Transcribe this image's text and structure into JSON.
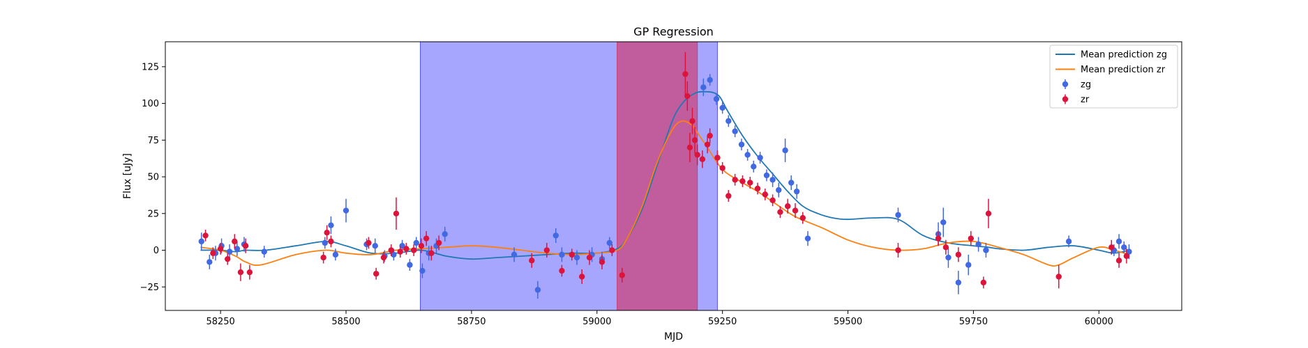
{
  "chart_data": {
    "type": "scatter",
    "title": "GP Regression",
    "xlabel": "MJD",
    "ylabel": "Flux [uJy]",
    "xlim": [
      58140,
      60165
    ],
    "ylim": [
      -41,
      142
    ],
    "xticks": [
      58250,
      58500,
      58750,
      59000,
      59250,
      59500,
      59750,
      60000
    ],
    "yticks": [
      -25,
      0,
      25,
      50,
      75,
      100,
      125
    ],
    "grid": false,
    "legend_position": "top-right",
    "shaded_regions": [
      {
        "x0": 58648,
        "x1": 59240,
        "color": "#0000ff",
        "opacity": 0.35
      },
      {
        "x0": 59040,
        "x1": 59200,
        "color": "#dc143c",
        "opacity": 0.5
      }
    ],
    "series": [
      {
        "name": "Mean prediction zg",
        "kind": "line",
        "color": "#1f77b4",
        "x": [
          58210,
          58250,
          58280,
          58300,
          58340,
          58400,
          58460,
          58500,
          58550,
          58600,
          58650,
          58700,
          58750,
          58800,
          58850,
          58900,
          58950,
          59000,
          59040,
          59060,
          59090,
          59120,
          59150,
          59170,
          59190,
          59210,
          59240,
          59260,
          59290,
          59320,
          59350,
          59380,
          59410,
          59440,
          59470,
          59500,
          59550,
          59600,
          59650,
          59700,
          59750,
          59780,
          59800,
          59850,
          59900,
          59950,
          60000,
          60030,
          60060
        ],
        "y": [
          0,
          0,
          -1,
          0,
          0,
          3,
          6,
          3,
          -2,
          -2,
          0,
          -4,
          -6,
          -5,
          -4,
          -3,
          -2,
          -2,
          1,
          8,
          28,
          58,
          88,
          100,
          106,
          108,
          106,
          95,
          78,
          64,
          52,
          40,
          30,
          25,
          22,
          21,
          22,
          21,
          10,
          5,
          3,
          2,
          1,
          0,
          2,
          3,
          0,
          -2,
          0
        ]
      },
      {
        "name": "Mean prediction zr",
        "kind": "line",
        "color": "#ff7f0e",
        "x": [
          58210,
          58250,
          58280,
          58300,
          58330,
          58400,
          58460,
          58500,
          58550,
          58600,
          58650,
          58700,
          58750,
          58800,
          58850,
          58900,
          58950,
          59000,
          59040,
          59060,
          59090,
          59120,
          59150,
          59170,
          59190,
          59200,
          59220,
          59250,
          59290,
          59320,
          59350,
          59380,
          59400,
          59450,
          59500,
          59550,
          59600,
          59650,
          59700,
          59750,
          59800,
          59850,
          59900,
          59920,
          59950,
          60000,
          60030,
          60060
        ],
        "y": [
          2,
          0,
          -4,
          -8,
          -10,
          -3,
          0,
          -2,
          -3,
          0,
          1,
          2,
          3,
          2,
          0,
          -2,
          -3,
          -2,
          0,
          8,
          30,
          60,
          82,
          88,
          85,
          80,
          70,
          55,
          46,
          40,
          33,
          26,
          22,
          15,
          7,
          2,
          0,
          1,
          5,
          6,
          2,
          -3,
          -10,
          -10,
          -5,
          2,
          0,
          -3
        ]
      },
      {
        "name": "zg",
        "kind": "errorbar",
        "color": "#4169e1",
        "x": [
          58212,
          58228,
          58240,
          58252,
          58268,
          58283,
          58297,
          58337,
          58458,
          58470,
          58479,
          58500,
          58541,
          58558,
          58577,
          58595,
          58612,
          58627,
          58640,
          58652,
          58665,
          58680,
          58697,
          58835,
          58882,
          58918,
          58930,
          58960,
          58990,
          59010,
          59025,
          59212,
          59225,
          59238,
          59250,
          59262,
          59275,
          59288,
          59300,
          59312,
          59325,
          59338,
          59350,
          59362,
          59375,
          59387,
          59398,
          59420,
          59600,
          59680,
          59690,
          59700,
          59720,
          59740,
          59760,
          59775,
          59940,
          60030,
          60040,
          60050,
          60060
        ],
        "y": [
          6,
          -8,
          -2,
          3,
          -1,
          1,
          4,
          -1,
          5,
          17,
          -3,
          27,
          4,
          3,
          -4,
          -3,
          3,
          -10,
          5,
          -14,
          -2,
          3,
          11,
          -3,
          -27,
          10,
          -3,
          -5,
          -3,
          -6,
          5,
          111,
          116,
          103,
          97,
          88,
          81,
          72,
          65,
          57,
          63,
          51,
          48,
          41,
          68,
          46,
          40,
          8,
          24,
          11,
          19,
          -5,
          -22,
          -10,
          4,
          0,
          6,
          0,
          6,
          2,
          -1
        ],
        "err": [
          6,
          5,
          5,
          5,
          5,
          5,
          5,
          4,
          4,
          6,
          4,
          8,
          4,
          5,
          4,
          4,
          4,
          4,
          4,
          5,
          5,
          5,
          5,
          5,
          6,
          5,
          5,
          5,
          5,
          5,
          4,
          6,
          4,
          4,
          4,
          4,
          4,
          4,
          4,
          4,
          4,
          4,
          5,
          5,
          8,
          5,
          5,
          5,
          5,
          8,
          10,
          7,
          8,
          7,
          5,
          5,
          4,
          4,
          5,
          4,
          5
        ]
      },
      {
        "name": "zr",
        "kind": "errorbar",
        "color": "#dc143c",
        "x": [
          58220,
          58235,
          58250,
          58264,
          58278,
          58290,
          58300,
          58308,
          58455,
          58462,
          58470,
          58545,
          58560,
          58575,
          58590,
          58600,
          58608,
          58620,
          58635,
          58650,
          58660,
          58670,
          58685,
          58870,
          58900,
          58930,
          58950,
          58970,
          58985,
          59010,
          59030,
          59050,
          59176,
          59180,
          59185,
          59190,
          59195,
          59200,
          59210,
          59220,
          59225,
          59240,
          59250,
          59262,
          59275,
          59290,
          59305,
          59320,
          59335,
          59350,
          59365,
          59380,
          59395,
          59410,
          59600,
          59680,
          59695,
          59720,
          59745,
          59770,
          59780,
          59920,
          60025,
          60040,
          60055
        ],
        "y": [
          10,
          -2,
          1,
          -6,
          6,
          -15,
          3,
          -15,
          -5,
          12,
          6,
          5,
          -16,
          -5,
          0,
          25,
          -1,
          1,
          0,
          3,
          8,
          -2,
          5,
          -7,
          0,
          -14,
          -3,
          -18,
          -5,
          -8,
          0,
          -17,
          120,
          105,
          70,
          88,
          75,
          65,
          62,
          72,
          78,
          63,
          56,
          37,
          48,
          47,
          46,
          42,
          38,
          34,
          26,
          30,
          27,
          22,
          0,
          8,
          2,
          -3,
          8,
          -22,
          25,
          -18,
          2,
          -7,
          -4
        ],
        "err": [
          4,
          4,
          4,
          4,
          5,
          6,
          5,
          5,
          4,
          5,
          4,
          4,
          4,
          4,
          4,
          11,
          4,
          4,
          4,
          5,
          5,
          5,
          5,
          5,
          5,
          4,
          4,
          5,
          5,
          5,
          4,
          5,
          15,
          10,
          10,
          9,
          9,
          7,
          6,
          6,
          5,
          5,
          4,
          4,
          4,
          4,
          4,
          4,
          4,
          4,
          4,
          5,
          5,
          4,
          5,
          5,
          5,
          5,
          5,
          4,
          10,
          8,
          5,
          5,
          5
        ]
      }
    ]
  }
}
